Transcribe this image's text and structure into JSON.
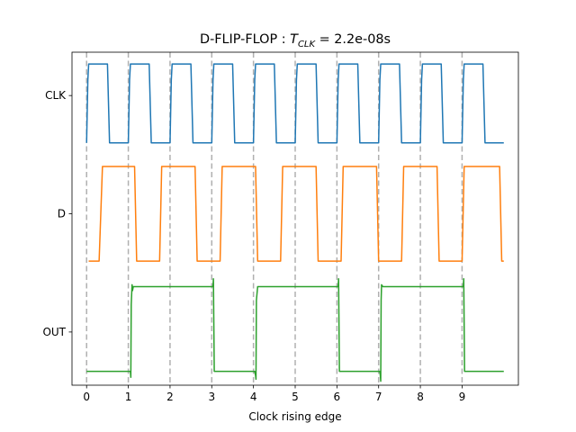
{
  "chart_data": {
    "type": "line",
    "title": {
      "prefix": "D-FLIP-FLOP : ",
      "symbol": "T",
      "subscript": "CLK",
      "suffix": " = 2.2e-08s"
    },
    "xlabel": "Clock rising edge",
    "ylabel": "",
    "xlim": [
      -0.35,
      10.35
    ],
    "ylim": [
      -0.85,
      7.6
    ],
    "x_ticks": [
      0,
      1,
      2,
      3,
      4,
      5,
      6,
      7,
      8,
      9
    ],
    "y_ticks": [
      {
        "label": "CLK",
        "value": 6.5
      },
      {
        "label": "D",
        "value": 3.5
      },
      {
        "label": "OUT",
        "value": 0.5
      }
    ],
    "grid": "vertical dashed at clock rising edges",
    "clock_edges": [
      0,
      1,
      2,
      3,
      4,
      5,
      6,
      7,
      8,
      9
    ],
    "series": [
      {
        "color": "#1f77b4",
        "x": [
          0,
          0.03,
          0.05,
          0.5,
          0.55,
          1,
          1.03,
          1.05,
          1.5,
          1.55,
          2,
          2.03,
          2.05,
          2.5,
          2.55,
          3,
          3.03,
          3.05,
          3.5,
          3.55,
          4,
          4.03,
          4.05,
          4.5,
          4.55,
          5,
          5.03,
          5.05,
          5.5,
          5.55,
          6,
          6.03,
          6.05,
          6.5,
          6.55,
          7,
          7.03,
          7.05,
          7.5,
          7.55,
          8,
          8.03,
          8.05,
          8.5,
          8.55,
          9,
          9.03,
          9.05,
          9.5,
          9.55,
          10
        ],
        "y": [
          5.3,
          6.9,
          7.3,
          7.3,
          5.3,
          5.3,
          6.9,
          7.3,
          7.3,
          5.3,
          5.3,
          6.9,
          7.3,
          7.3,
          5.3,
          5.3,
          6.9,
          7.3,
          7.3,
          5.3,
          5.3,
          6.9,
          7.3,
          7.3,
          5.3,
          5.3,
          6.9,
          7.3,
          7.3,
          5.3,
          5.3,
          6.9,
          7.3,
          7.3,
          5.3,
          5.3,
          6.9,
          7.3,
          7.3,
          5.3,
          5.3,
          6.9,
          7.3,
          7.3,
          5.3,
          5.3,
          6.9,
          7.3,
          7.3,
          5.3,
          5.3
        ]
      },
      {
        "color": "#ff7f0e",
        "x": [
          0.05,
          0.3,
          0.38,
          1.15,
          1.2,
          1.75,
          1.8,
          2.6,
          2.65,
          3.2,
          3.25,
          4.05,
          4.1,
          4.65,
          4.7,
          5.5,
          5.55,
          6.1,
          6.15,
          6.95,
          7,
          7.55,
          7.6,
          8.4,
          8.45,
          9,
          9.05,
          9.9,
          9.95,
          10
        ],
        "y": [
          2.3,
          2.3,
          4.7,
          4.7,
          2.3,
          2.3,
          4.7,
          4.7,
          2.3,
          2.3,
          4.7,
          4.7,
          2.3,
          2.3,
          4.7,
          4.7,
          2.3,
          2.3,
          4.7,
          4.7,
          2.3,
          2.3,
          4.7,
          4.7,
          2.3,
          2.3,
          4.7,
          4.7,
          2.3,
          2.3
        ]
      },
      {
        "color": "#2ca02c",
        "x": [
          0,
          1.05,
          1.06,
          1.07,
          1.09,
          1.1,
          1.12,
          3.03,
          3.04,
          3.06,
          4.03,
          4.05,
          4.06,
          4.07,
          4.1,
          6.03,
          6.04,
          6.06,
          7.03,
          7.04,
          7.05,
          7.06,
          7.07,
          7.1,
          9.03,
          9.04,
          9.06,
          10
        ],
        "y": [
          -0.5,
          -0.5,
          -0.65,
          1.2,
          1.7,
          1.55,
          1.65,
          1.65,
          1.85,
          -0.5,
          -0.5,
          -0.6,
          -0.7,
          1.3,
          1.65,
          1.65,
          1.85,
          -0.5,
          -0.5,
          -0.6,
          -0.75,
          1.3,
          1.7,
          1.65,
          1.65,
          1.85,
          -0.5,
          -0.5
        ]
      }
    ]
  }
}
